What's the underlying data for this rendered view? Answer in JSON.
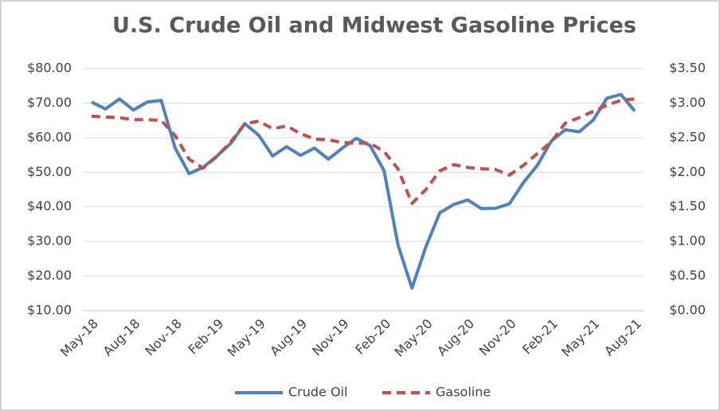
{
  "chart_data": {
    "type": "line",
    "title": "U.S. Crude Oil and Midwest Gasoline Prices",
    "categories": [
      "May-18",
      null,
      null,
      "Aug-18",
      null,
      null,
      "Nov-18",
      null,
      null,
      "Feb-19",
      null,
      null,
      "May-19",
      null,
      null,
      "Aug-19",
      null,
      null,
      "Nov-19",
      null,
      null,
      "Feb-20",
      null,
      null,
      "May-20",
      null,
      null,
      "Aug-20",
      null,
      null,
      "Nov-20",
      null,
      null,
      "Feb-21",
      null,
      null,
      "May-21",
      null,
      null,
      "Aug-21"
    ],
    "series": [
      {
        "name": "Crude Oil",
        "color": "#4f81bd",
        "axis": "y",
        "values": [
          70.3,
          68.3,
          71.2,
          68,
          70.3,
          70.8,
          57,
          49.6,
          51.4,
          54.7,
          58.4,
          64.1,
          60.7,
          54.7,
          57.4,
          54.9,
          57,
          53.8,
          57,
          59.8,
          57.7,
          50.5,
          29,
          16.5,
          28.5,
          38.3,
          40.7,
          42,
          39.5,
          39.6,
          40.9,
          47,
          52,
          59,
          62.3,
          61.7,
          65,
          71.4,
          72.5,
          67.7
        ]
      },
      {
        "name": "Gasoline",
        "color": "#c0504d",
        "axis": "y2",
        "dashed": true,
        "values": [
          2.81,
          2.8,
          2.79,
          2.76,
          2.76,
          2.75,
          2.53,
          2.19,
          2.06,
          2.23,
          2.44,
          2.7,
          2.74,
          2.63,
          2.67,
          2.56,
          2.48,
          2.47,
          2.43,
          2.42,
          2.42,
          2.3,
          2.05,
          1.55,
          1.75,
          2.02,
          2.11,
          2.07,
          2.05,
          2.04,
          1.96,
          2.1,
          2.27,
          2.44,
          2.71,
          2.79,
          2.88,
          2.97,
          3.04,
          3.06
        ]
      }
    ],
    "ylim": [
      10,
      80
    ],
    "yticks": [
      {
        "value": 10,
        "label": "$10.00"
      },
      {
        "value": 20,
        "label": "$20.00"
      },
      {
        "value": 30,
        "label": "$30.00"
      },
      {
        "value": 40,
        "label": "$40.00"
      },
      {
        "value": 50,
        "label": "$50.00"
      },
      {
        "value": 60,
        "label": "$60.00"
      },
      {
        "value": 70,
        "label": "$70.00"
      },
      {
        "value": 80,
        "label": "$80.00"
      }
    ],
    "y2lim": [
      0,
      3.5
    ],
    "y2ticks": [
      {
        "value": 0,
        "label": "$0.00"
      },
      {
        "value": 0.5,
        "label": "$0.50"
      },
      {
        "value": 1,
        "label": "$1.00"
      },
      {
        "value": 1.5,
        "label": "$1.50"
      },
      {
        "value": 2,
        "label": "$2.00"
      },
      {
        "value": 2.5,
        "label": "$2.50"
      },
      {
        "value": 3,
        "label": "$3.00"
      },
      {
        "value": 3.5,
        "label": "$3.50"
      }
    ],
    "grid": true,
    "legend": "bottom"
  }
}
